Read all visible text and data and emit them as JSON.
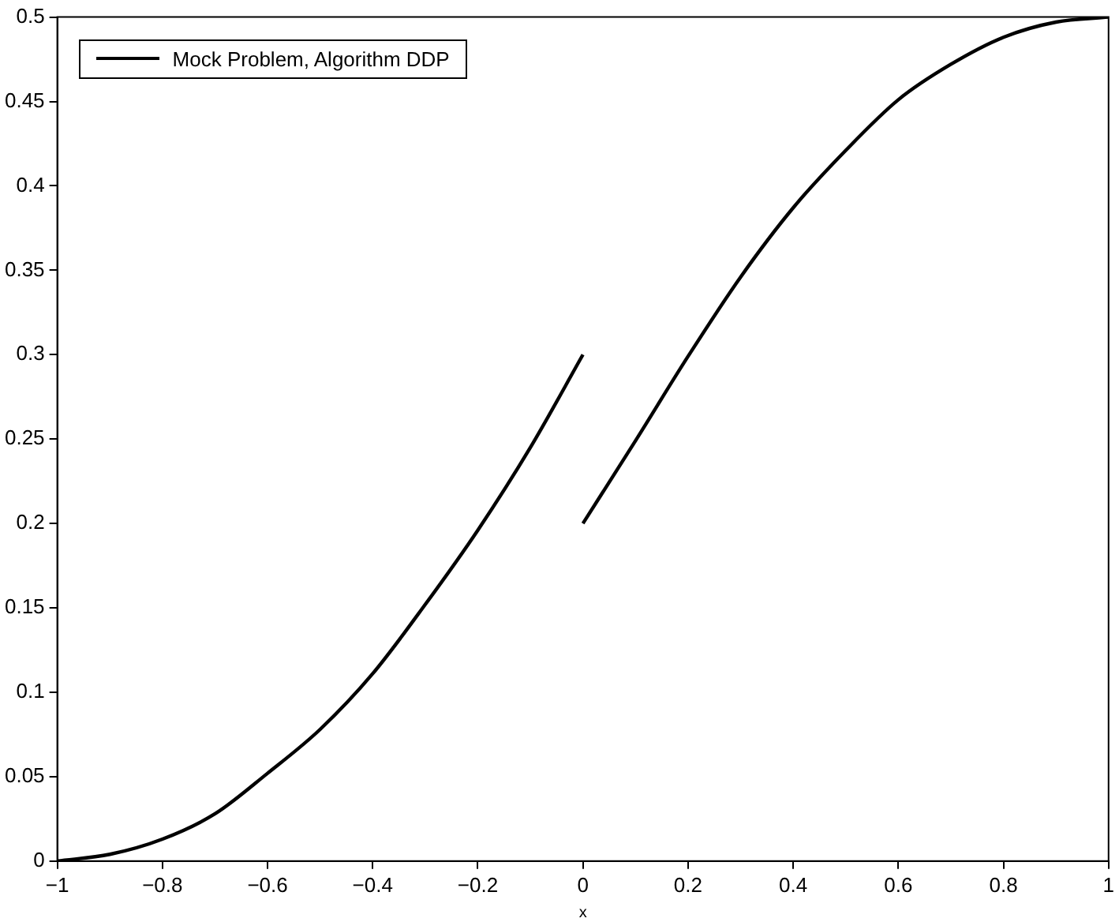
{
  "chart_data": {
    "type": "line",
    "xlabel": "x",
    "series": [
      {
        "name": "Mock Problem, Algorithm DDP",
        "color": "#000000",
        "x": [
          -1,
          -0.9,
          -0.8,
          -0.7,
          -0.6,
          -0.5,
          -0.4,
          -0.3,
          -0.2,
          -0.1,
          0
        ],
        "values": [
          0,
          0.004,
          0.013,
          0.028,
          0.052,
          0.078,
          0.111,
          0.152,
          0.196,
          0.245,
          0.3
        ]
      },
      {
        "color": "#000000",
        "x": [
          0,
          0.1,
          0.2,
          0.3,
          0.4,
          0.5,
          0.6,
          0.7,
          0.8,
          0.9,
          1
        ],
        "values": [
          0.2,
          0.249,
          0.299,
          0.346,
          0.387,
          0.421,
          0.451,
          0.472,
          0.488,
          0.497,
          0.5
        ]
      }
    ],
    "xlim": [
      -1,
      1
    ],
    "xticks": [
      -1,
      -0.8,
      -0.6,
      -0.4,
      -0.2,
      0,
      0.2,
      0.4,
      0.6,
      0.8,
      1
    ],
    "ylim": [
      0,
      0.5
    ],
    "yticks": [
      0,
      0.05,
      0.1,
      0.15,
      0.2,
      0.25,
      0.3,
      0.35,
      0.4,
      0.45,
      0.5
    ],
    "grid": false,
    "legend": "top left",
    "marker": "none",
    "line_style": "solid"
  }
}
